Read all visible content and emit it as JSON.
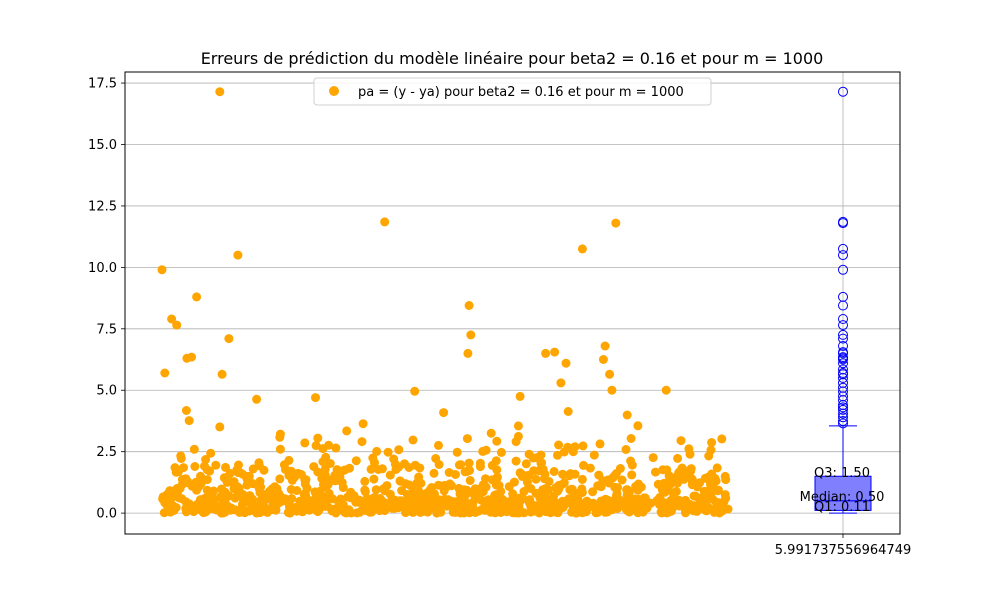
{
  "chart_data": {
    "type": "scatter",
    "title": "Erreurs de prédiction du modèle linéaire pour beta2 = 0.16 et pour m = 1000",
    "xlabel": "",
    "ylabel": "",
    "ylim": [
      -0.85,
      17.95
    ],
    "yticks": [
      "0.0",
      "2.5",
      "5.0",
      "7.5",
      "10.0",
      "12.5",
      "15.0",
      "17.5"
    ],
    "xtick_label": "5.991737556964749",
    "grid": true,
    "legend": {
      "placement": "top-center",
      "entries": [
        "pa = (y - ya) pour beta2 = 0.16 et pour m = 1000"
      ]
    },
    "colors": {
      "scatter": "#FFA500",
      "box_fill": "#8080FF",
      "box_edge": "#0000FF",
      "grid": "#b0b0b0"
    },
    "series": [
      {
        "name": "pa = (y - ya) pour beta2 = 0.16 et pour m = 1000",
        "n_points": 1000,
        "notable_points": [
          {
            "x": 0,
            "y": 9.9
          },
          {
            "x": 5,
            "y": 5.7
          },
          {
            "x": 17,
            "y": 7.9
          },
          {
            "x": 26,
            "y": 7.65
          },
          {
            "x": 44,
            "y": 6.3
          },
          {
            "x": 52,
            "y": 6.35
          },
          {
            "x": 61,
            "y": 8.8
          },
          {
            "x": 102,
            "y": 17.15
          },
          {
            "x": 106,
            "y": 5.65
          },
          {
            "x": 118,
            "y": 7.1
          },
          {
            "x": 134,
            "y": 10.5
          },
          {
            "x": 393,
            "y": 11.85
          },
          {
            "x": 542,
            "y": 8.45
          },
          {
            "x": 540,
            "y": 6.5
          },
          {
            "x": 545,
            "y": 7.25
          },
          {
            "x": 677,
            "y": 6.5
          },
          {
            "x": 693,
            "y": 6.55
          },
          {
            "x": 704,
            "y": 5.3
          },
          {
            "x": 713,
            "y": 6.1
          },
          {
            "x": 742,
            "y": 10.75
          },
          {
            "x": 779,
            "y": 6.25
          },
          {
            "x": 782,
            "y": 6.8
          },
          {
            "x": 790,
            "y": 5.65
          },
          {
            "x": 801,
            "y": 11.8
          }
        ]
      }
    ],
    "boxplot": {
      "q1": 0.11,
      "median": 0.5,
      "q3": 1.5,
      "whisker_low": 0.0,
      "whisker_high": 3.55,
      "outliers": [
        17.15,
        11.85,
        11.8,
        10.75,
        10.5,
        9.9,
        8.8,
        8.45,
        7.9,
        7.65,
        7.25,
        7.1,
        6.8,
        6.55,
        6.5,
        6.35,
        6.3,
        6.25,
        6.1,
        5.85,
        5.7,
        5.65,
        5.5,
        5.3,
        5.1,
        4.95,
        4.75,
        4.6,
        4.4,
        4.3,
        4.2,
        4.05,
        3.9,
        3.75,
        3.65
      ]
    },
    "annotations": [
      "Q3: 1.50",
      "Median: 0.50",
      "Q1: 0.11"
    ]
  }
}
